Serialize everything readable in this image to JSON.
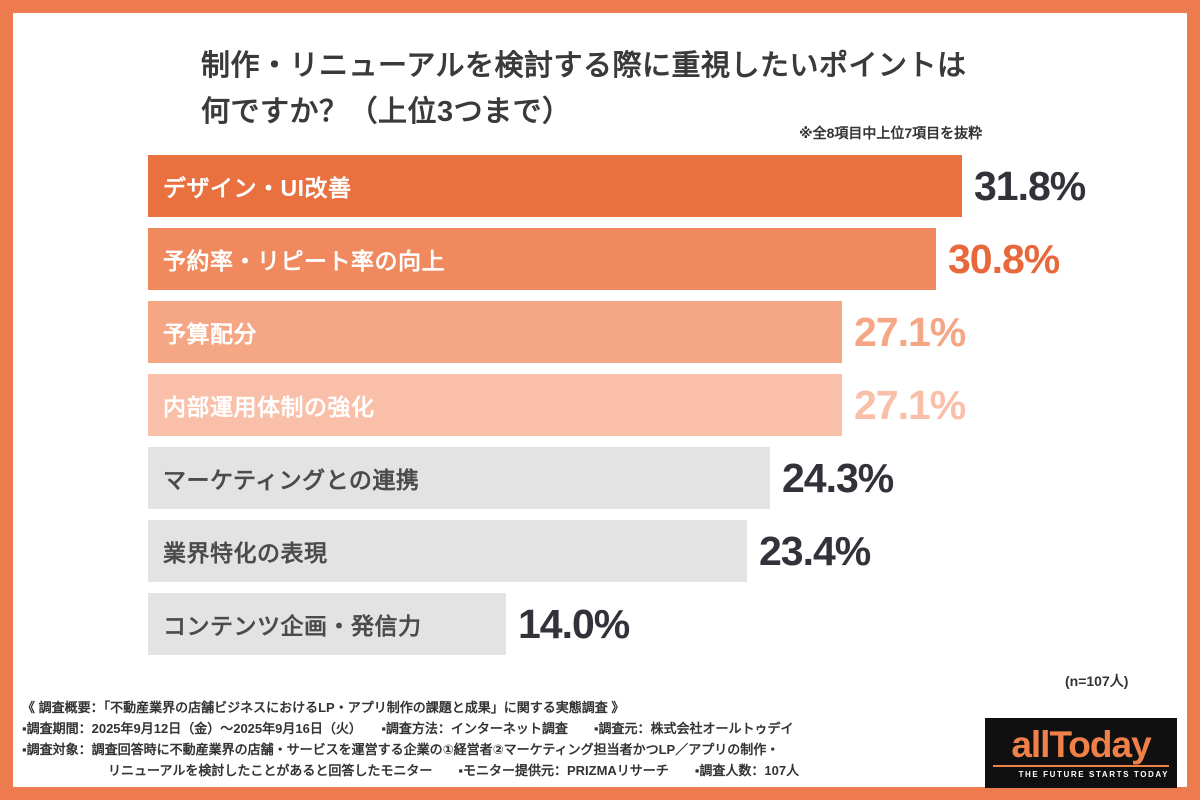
{
  "page": {
    "border_color": "#ee7b4d",
    "background_color": "#ffffff"
  },
  "header": {
    "title_line1": "制作・リニューアルを検討する際に重視したいポイントは",
    "title_line2": "何ですか？（上位3つまで）",
    "note": "※全8項目中上位7項目を抜粋"
  },
  "chart_data": {
    "type": "bar",
    "orientation": "horizontal",
    "title": "制作・リニューアルを検討する際に重視したいポイントは何ですか？（上位3つまで）",
    "categories": [
      "デザイン・UI改善",
      "予約率・リピート率の向上",
      "予算配分",
      "内部運用体制の強化",
      "マーケティングとの連携",
      "業界特化の表現",
      "コンテンツ企画・発信力"
    ],
    "values": [
      31.8,
      30.8,
      27.1,
      27.1,
      24.3,
      23.4,
      14.0
    ],
    "value_labels": [
      "31.8%",
      "30.8%",
      "27.1%",
      "27.1%",
      "24.3%",
      "23.4%",
      "14.0%"
    ],
    "bar_colors": [
      "#e9703f",
      "#f08a5e",
      "#f5a684",
      "#f9bfa8",
      "#e3e3e3",
      "#e3e3e3",
      "#e3e3e3"
    ],
    "category_label_colors": [
      "#ffffff",
      "#ffffff",
      "#ffffff",
      "#ffffff",
      "#4b4b4b",
      "#4b4b4b",
      "#4b4b4b"
    ],
    "value_label_colors": [
      "#32323a",
      "#e8683b",
      "#f5a684",
      "#f9bfa8",
      "#32323a",
      "#32323a",
      "#32323a"
    ],
    "sample_note": "(n=107人)"
  },
  "footer": {
    "lines": [
      "《 調査概要：「不動産業界の店舗ビジネスにおけるLP・アプリ制作の課題と成果」に関する実態調査 》",
      "▪調査期間：2025年9月12日（金）〜2025年9月16日（火）　　▪調査方法：インターネット調査　　▪調査元：株式会社オールトゥデイ",
      "▪調査対象：調査回答時に不動産業界の店舗・サービスを運営する企業の①経営者②マーケティング担当者かつLP／アプリの制作・",
      "リニューアルを検討したことがあると回答したモニター　　▪モニター提供元：PRIZMAリサーチ　　▪調査人数：107人"
    ]
  },
  "logo": {
    "wordmark": "allToday",
    "tagline": "THE FUTURE STARTS TODAY",
    "accent_color": "#f08049"
  }
}
